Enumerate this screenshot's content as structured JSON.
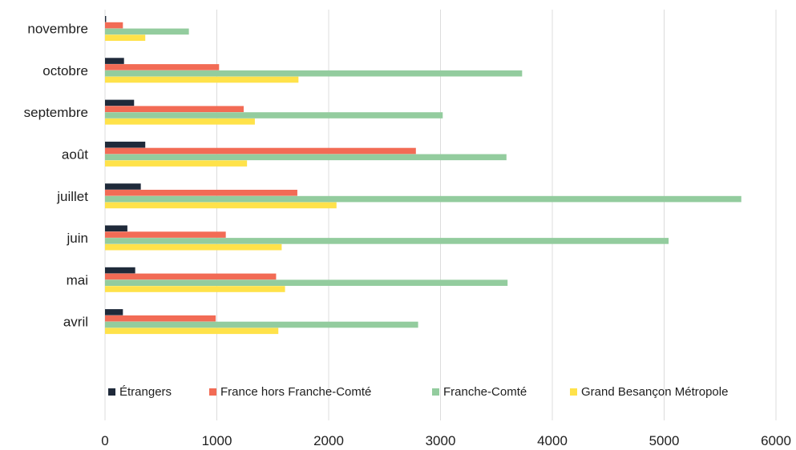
{
  "chart_data": {
    "type": "bar",
    "orientation": "horizontal",
    "categories": [
      "novembre",
      "octobre",
      "septembre",
      "août",
      "juillet",
      "juin",
      "mai",
      "avril"
    ],
    "series": [
      {
        "name": "Étrangers",
        "color": "#1f2a3a",
        "values": [
          10,
          170,
          260,
          360,
          320,
          200,
          270,
          160
        ]
      },
      {
        "name": "France hors Franche-Comté",
        "color": "#f26b55",
        "values": [
          160,
          1020,
          1240,
          2780,
          1720,
          1080,
          1530,
          990
        ]
      },
      {
        "name": "Franche-Comté",
        "color": "#93cc9e",
        "values": [
          750,
          3730,
          3020,
          3590,
          5690,
          5040,
          3600,
          2800
        ]
      },
      {
        "name": "Grand Besançon Métropole",
        "color": "#ffe24a",
        "values": [
          360,
          1730,
          1340,
          1270,
          2070,
          1580,
          1610,
          1550
        ]
      }
    ],
    "xlim": [
      0,
      6000
    ],
    "xticks": [
      "0",
      "1000",
      "2000",
      "3000",
      "4000",
      "5000",
      "6000"
    ],
    "grid": "vertical",
    "legend_position": "bottom"
  }
}
